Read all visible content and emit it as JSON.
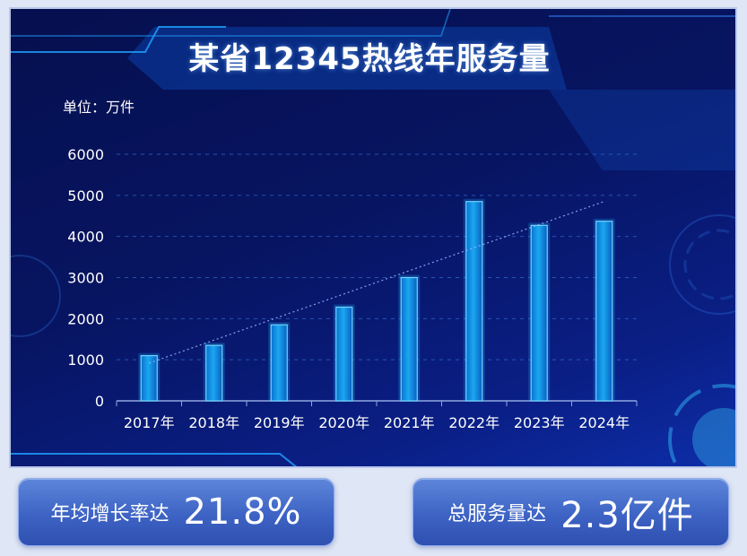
{
  "title": "某省12345热线年服务量",
  "unit_label": "单位：万件",
  "chart_data": {
    "type": "bar",
    "title": "某省12345热线年服务量",
    "ylabel": "单位：万件",
    "xlabel": "",
    "categories": [
      "2017年",
      "2018年",
      "2019年",
      "2020年",
      "2021年",
      "2022年",
      "2023年",
      "2024年"
    ],
    "values": [
      1100,
      1350,
      1850,
      2280,
      3000,
      4850,
      4270,
      4370
    ],
    "ylim": [
      0,
      6000
    ],
    "yticks": [
      0,
      1000,
      2000,
      3000,
      4000,
      5000,
      6000
    ],
    "grid": true,
    "trendline": true,
    "colors": {
      "bar": "#1aa8f0",
      "grid": "#2f6fd0",
      "trend": "#9fb8ff"
    }
  },
  "stats": [
    {
      "label": "年均增长率达",
      "value": "21.8%"
    },
    {
      "label": "总服务量达",
      "value": "2.3亿件"
    }
  ]
}
